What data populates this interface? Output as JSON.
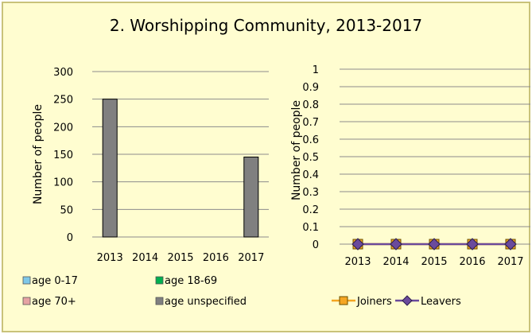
{
  "title": "2. Worshipping Community, 2013-2017",
  "chart_data": [
    {
      "type": "bar",
      "categories": [
        "2013",
        "2014",
        "2015",
        "2016",
        "2017"
      ],
      "series": [
        {
          "name": "age 0-17",
          "values": [
            0,
            0,
            0,
            0,
            0
          ],
          "color": "#7fc8e8"
        },
        {
          "name": "age 18-69",
          "values": [
            0,
            0,
            0,
            0,
            0
          ],
          "color": "#00b050"
        },
        {
          "name": "age 70+",
          "values": [
            0,
            0,
            0,
            0,
            0
          ],
          "color": "#e6a3a3"
        },
        {
          "name": "age unspecified",
          "values": [
            250,
            0,
            0,
            0,
            145
          ],
          "color": "#808080"
        }
      ],
      "ylabel": "Number of people",
      "ylim": [
        0,
        300
      ],
      "yticks": [
        "0",
        "50",
        "100",
        "150",
        "200",
        "250",
        "300"
      ],
      "grid": true,
      "legend": "bottom"
    },
    {
      "type": "line",
      "categories": [
        "2013",
        "2014",
        "2015",
        "2016",
        "2017"
      ],
      "series": [
        {
          "name": "Joiners",
          "values": [
            0,
            0,
            0,
            0,
            0
          ],
          "color": "#f5a623",
          "marker": "square"
        },
        {
          "name": "Leavers",
          "values": [
            0,
            0,
            0,
            0,
            0
          ],
          "color": "#6a4a9c",
          "marker": "diamond"
        }
      ],
      "ylabel": "Number of people",
      "ylim": [
        0,
        1
      ],
      "yticks": [
        "0",
        "0.1",
        "0.2",
        "0.3",
        "0.4",
        "0.5",
        "0.6",
        "0.7",
        "0.8",
        "0.9",
        "1"
      ],
      "grid": true,
      "legend": "bottom"
    }
  ]
}
